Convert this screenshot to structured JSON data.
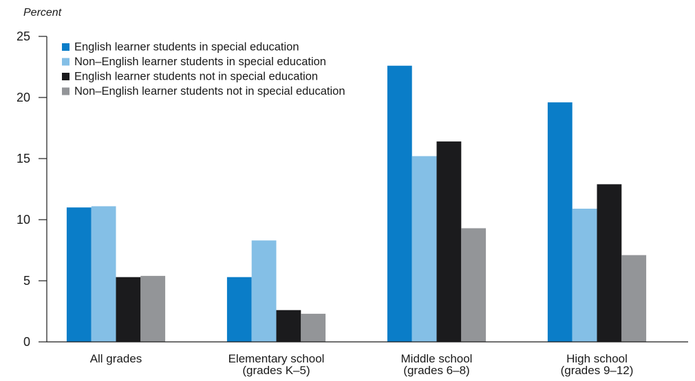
{
  "chart_data": {
    "type": "bar",
    "ylabel": "Percent",
    "ylim": [
      0,
      25
    ],
    "yticks": [
      0,
      5,
      10,
      15,
      20,
      25
    ],
    "grid": false,
    "legend_position": "top-left",
    "categories": [
      [
        "All grades"
      ],
      [
        "Elementary school",
        "(grades K–5)"
      ],
      [
        "Middle school",
        "(grades 6–8)"
      ],
      [
        "High school",
        "(grades 9–12)"
      ]
    ],
    "series": [
      {
        "name": "English learner students in special education",
        "color": "#0a7dc8",
        "values": [
          11.0,
          5.3,
          22.6,
          19.6
        ]
      },
      {
        "name": "Non–English learner students in special education",
        "color": "#84bfe6",
        "values": [
          11.1,
          8.3,
          15.2,
          10.9
        ]
      },
      {
        "name": "English learner students not in special education",
        "color": "#1b1b1d",
        "values": [
          5.3,
          2.6,
          16.4,
          12.9
        ]
      },
      {
        "name": "Non–English learner students not in special education",
        "color": "#939598",
        "values": [
          5.4,
          2.3,
          9.3,
          7.1
        ]
      }
    ]
  }
}
